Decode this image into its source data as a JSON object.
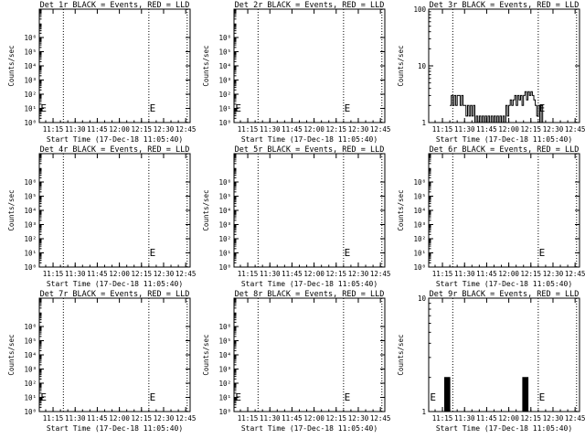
{
  "chart_data": [
    {
      "type": "line",
      "title": "Det 1r BLACK = Events, RED = LLD",
      "xlabel": "Start Time (17-Dec-18 11:05:40)",
      "ylabel": "Counts/sec",
      "y_scale": "log",
      "ylim": [
        1,
        100000000
      ],
      "ytick_labels": [
        "10⁰",
        "10¹",
        "10²",
        "10³",
        "10⁴",
        "10⁵",
        "10⁶"
      ],
      "xlim": [
        "11:05:40",
        "12:48:00"
      ],
      "xtick_labels": [
        "11:15",
        "11:30",
        "11:45",
        "12:00",
        "12:15",
        "12:30",
        "12:45"
      ],
      "vlines": [
        "11:22:00",
        "12:20:00",
        "12:46:00"
      ],
      "markers": [
        {
          "label": "E",
          "x": "11:06:30"
        },
        {
          "label": "E",
          "x": "12:20:30"
        }
      ],
      "series": []
    },
    {
      "type": "line",
      "title": "Det 2r BLACK = Events, RED = LLD",
      "xlabel": "Start Time (17-Dec-18 11:05:40)",
      "ylabel": "Counts/sec",
      "y_scale": "log",
      "ylim": [
        1,
        100000000
      ],
      "ytick_labels": [
        "10⁰",
        "10¹",
        "10²",
        "10³",
        "10⁴",
        "10⁵",
        "10⁶"
      ],
      "xlim": [
        "11:05:40",
        "12:48:00"
      ],
      "xtick_labels": [
        "11:15",
        "11:30",
        "11:45",
        "12:00",
        "12:15",
        "12:30",
        "12:45"
      ],
      "vlines": [
        "11:22:00",
        "12:20:00",
        "12:46:00"
      ],
      "markers": [
        {
          "label": "E",
          "x": "11:06:30"
        },
        {
          "label": "E",
          "x": "12:20:30"
        }
      ],
      "series": []
    },
    {
      "type": "line",
      "title": "Det 3r BLACK = Events, RED = LLD",
      "xlabel": "Start Time (17-Dec-18 11:05:40)",
      "ylabel": "Counts/sec",
      "y_scale": "log",
      "ylim": [
        1,
        100
      ],
      "ytick_labels": [
        "1",
        "10",
        "100"
      ],
      "xlim": [
        "11:05:40",
        "12:48:00"
      ],
      "xtick_labels": [
        "11:15",
        "11:30",
        "11:45",
        "12:00",
        "12:15",
        "12:30",
        "12:45"
      ],
      "vlines": [
        "11:22:00",
        "12:20:00",
        "12:46:00"
      ],
      "markers": [
        {
          "label": "E",
          "x": "12:20:30"
        }
      ],
      "series": [
        {
          "color": "#000000",
          "x": [
            "11:20:00",
            "11:21:00",
            "11:22:00",
            "11:23:00",
            "11:24:00",
            "11:25:00",
            "11:26:00",
            "11:27:00",
            "11:28:00",
            "11:29:00",
            "11:30:00",
            "11:31:00",
            "11:32:00",
            "11:33:00",
            "11:34:00",
            "11:35:00",
            "11:36:00",
            "11:37:00",
            "11:38:00",
            "11:39:00",
            "11:40:00",
            "11:41:00",
            "11:42:00",
            "11:43:00",
            "11:44:00",
            "11:45:00",
            "11:46:00",
            "11:47:00",
            "11:48:00",
            "11:49:00",
            "11:50:00",
            "11:51:00",
            "11:52:00",
            "11:53:00",
            "11:54:00",
            "11:55:00",
            "11:56:00",
            "11:57:00",
            "11:58:00",
            "11:59:00",
            "12:00:00",
            "12:01:00",
            "12:02:00",
            "12:03:00",
            "12:04:00",
            "12:05:00",
            "12:06:00",
            "12:07:00",
            "12:08:00",
            "12:09:00",
            "12:10:00",
            "12:11:00",
            "12:12:00",
            "12:13:00",
            "12:14:00",
            "12:15:00",
            "12:16:00",
            "12:17:00",
            "12:18:00",
            "12:19:00",
            "12:20:00",
            "12:21:00",
            "12:22:00",
            "12:23:00"
          ],
          "values": [
            2,
            3,
            2,
            3,
            2,
            3,
            3,
            2,
            3,
            2,
            2,
            1.3,
            2,
            1.3,
            2,
            1.3,
            2,
            1,
            1.3,
            1,
            1.3,
            1,
            1.3,
            1,
            1.3,
            1,
            1.3,
            1,
            1.3,
            1,
            1.3,
            1,
            1.3,
            1,
            1.3,
            1,
            1.3,
            1,
            2,
            1.3,
            2,
            2.5,
            2,
            2.5,
            3,
            2,
            3,
            2.5,
            3,
            2,
            3,
            3.5,
            2.5,
            3.5,
            3,
            3.5,
            3,
            2.5,
            2,
            1.3,
            2,
            1,
            2,
            1
          ]
        }
      ]
    },
    {
      "type": "line",
      "title": "Det 4r BLACK = Events, RED = LLD",
      "xlabel": "Start Time (17-Dec-18 11:05:40)",
      "ylabel": "Counts/sec",
      "y_scale": "log",
      "ylim": [
        1,
        100000000
      ],
      "ytick_labels": [
        "10⁰",
        "10¹",
        "10²",
        "10³",
        "10⁴",
        "10⁵",
        "10⁶"
      ],
      "xlim": [
        "11:05:40",
        "12:48:00"
      ],
      "xtick_labels": [
        "11:15",
        "11:30",
        "11:45",
        "12:00",
        "12:15",
        "12:30",
        "12:45"
      ],
      "vlines": [
        "11:22:00",
        "12:20:00",
        "12:46:00"
      ],
      "markers": [
        {
          "label": "E",
          "x": "12:20:30"
        }
      ],
      "series": []
    },
    {
      "type": "line",
      "title": "Det 5r BLACK = Events, RED = LLD",
      "xlabel": "Start Time (17-Dec-18 11:05:40)",
      "ylabel": "Counts/sec",
      "y_scale": "log",
      "ylim": [
        1,
        100000000
      ],
      "ytick_labels": [
        "10⁰",
        "10¹",
        "10²",
        "10³",
        "10⁴",
        "10⁵",
        "10⁶"
      ],
      "xlim": [
        "11:05:40",
        "12:48:00"
      ],
      "xtick_labels": [
        "11:15",
        "11:30",
        "11:45",
        "12:00",
        "12:15",
        "12:30",
        "12:45"
      ],
      "vlines": [
        "11:22:00",
        "12:20:00",
        "12:46:00"
      ],
      "markers": [
        {
          "label": "E",
          "x": "12:20:30"
        }
      ],
      "series": []
    },
    {
      "type": "line",
      "title": "Det 6r BLACK = Events, RED = LLD",
      "xlabel": "Start Time (17-Dec-18 11:05:40)",
      "ylabel": "Counts/sec",
      "y_scale": "log",
      "ylim": [
        1,
        100000000
      ],
      "ytick_labels": [
        "10⁰",
        "10¹",
        "10²",
        "10³",
        "10⁴",
        "10⁵",
        "10⁶"
      ],
      "xlim": [
        "11:05:40",
        "12:48:00"
      ],
      "xtick_labels": [
        "11:15",
        "11:30",
        "11:45",
        "12:00",
        "12:15",
        "12:30",
        "12:45"
      ],
      "vlines": [
        "11:22:00",
        "12:20:00",
        "12:46:00"
      ],
      "markers": [
        {
          "label": "E",
          "x": "12:20:30"
        }
      ],
      "series": []
    },
    {
      "type": "line",
      "title": "Det 7r BLACK = Events, RED = LLD",
      "xlabel": "Start Time (17-Dec-18 11:05:40)",
      "ylabel": "Counts/sec",
      "y_scale": "log",
      "ylim": [
        1,
        100000000
      ],
      "ytick_labels": [
        "10⁰",
        "10¹",
        "10²",
        "10³",
        "10⁴",
        "10⁵",
        "10⁶"
      ],
      "xlim": [
        "11:05:40",
        "12:48:00"
      ],
      "xtick_labels": [
        "11:15",
        "11:30",
        "11:45",
        "12:00",
        "12:15",
        "12:30",
        "12:45"
      ],
      "vlines": [
        "11:22:00",
        "12:20:00",
        "12:46:00"
      ],
      "markers": [
        {
          "label": "E",
          "x": "11:06:30"
        },
        {
          "label": "E",
          "x": "12:20:30"
        }
      ],
      "series": []
    },
    {
      "type": "line",
      "title": "Det 8r BLACK = Events, RED = LLD",
      "xlabel": "Start Time (17-Dec-18 11:05:40)",
      "ylabel": "Counts/sec",
      "y_scale": "log",
      "ylim": [
        1,
        100000000
      ],
      "ytick_labels": [
        "10⁰",
        "10¹",
        "10²",
        "10³",
        "10⁴",
        "10⁵",
        "10⁶"
      ],
      "xlim": [
        "11:05:40",
        "12:48:00"
      ],
      "xtick_labels": [
        "11:15",
        "11:30",
        "11:45",
        "12:00",
        "12:15",
        "12:30",
        "12:45"
      ],
      "vlines": [
        "11:22:00",
        "12:20:00",
        "12:46:00"
      ],
      "markers": [
        {
          "label": "E",
          "x": "11:06:30"
        },
        {
          "label": "E",
          "x": "12:20:30"
        }
      ],
      "series": []
    },
    {
      "type": "line",
      "title": "Det 9r BLACK = Events, RED = LLD",
      "xlabel": "Start Time (17-Dec-18 11:05:40)",
      "ylabel": "Counts/sec",
      "y_scale": "log",
      "ylim": [
        1,
        10
      ],
      "ytick_labels": [
        "1",
        "10"
      ],
      "xlim": [
        "11:05:40",
        "12:48:00"
      ],
      "xtick_labels": [
        "11:15",
        "11:30",
        "11:45",
        "12:00",
        "12:15",
        "12:30",
        "12:45"
      ],
      "vlines": [
        "11:22:00",
        "12:20:00",
        "12:46:00"
      ],
      "markers": [
        {
          "label": "E",
          "x": "11:06:30"
        },
        {
          "label": "E",
          "x": "12:20:30"
        }
      ],
      "series": [
        {
          "color": "#000000",
          "x": [
            "11:16:00",
            "11:16:30",
            "11:17:00",
            "11:17:30",
            "11:18:00",
            "11:18:30",
            "11:19:00",
            "11:19:30",
            "11:20:00",
            "11:20:30",
            "12:09:00",
            "12:09:30",
            "12:10:00",
            "12:10:30",
            "12:11:00",
            "12:11:30",
            "12:12:00",
            "12:12:30",
            "12:13:00",
            "12:13:30"
          ],
          "values": [
            1,
            2,
            1,
            2,
            1,
            2,
            1,
            2,
            1,
            1,
            1,
            2,
            1,
            2,
            1,
            2,
            1,
            2,
            1,
            1
          ]
        }
      ]
    }
  ]
}
